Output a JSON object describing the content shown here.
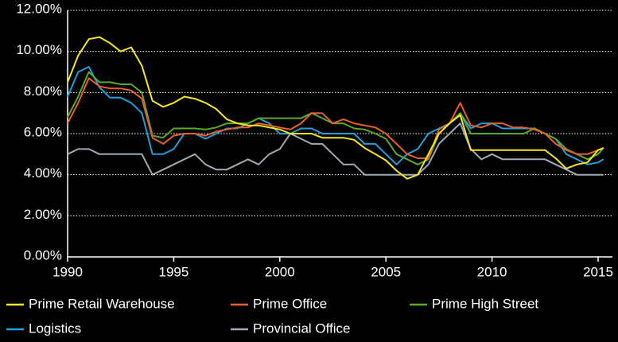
{
  "chart_data": {
    "type": "line",
    "x": [
      1990,
      1990.5,
      1991,
      1991.5,
      1992,
      1992.5,
      1993,
      1993.5,
      1994,
      1994.5,
      1995,
      1995.5,
      1996,
      1996.5,
      1997,
      1997.5,
      1998,
      1998.5,
      1999,
      1999.5,
      2000,
      2000.5,
      2001,
      2001.5,
      2002,
      2002.5,
      2003,
      2003.5,
      2004,
      2004.5,
      2005,
      2005.5,
      2006,
      2006.5,
      2007,
      2007.5,
      2008,
      2008.5,
      2009,
      2009.5,
      2010,
      2010.5,
      2011,
      2011.5,
      2012,
      2012.5,
      2013,
      2013.5,
      2014,
      2014.5,
      2015,
      2015.25
    ],
    "series": [
      {
        "name": "Prime Retail Warehouse",
        "color": "#f5e61e",
        "values": [
          8.5,
          9.8,
          10.6,
          10.7,
          10.4,
          10.0,
          10.2,
          9.3,
          7.6,
          7.3,
          7.5,
          7.8,
          7.7,
          7.5,
          7.2,
          6.7,
          6.5,
          6.4,
          6.4,
          6.3,
          6.2,
          6.0,
          6.0,
          6.0,
          5.8,
          5.8,
          5.8,
          5.7,
          5.3,
          5.0,
          4.7,
          4.2,
          3.8,
          4.0,
          5.0,
          6.0,
          6.5,
          6.9,
          5.2,
          5.2,
          5.2,
          5.2,
          5.2,
          5.2,
          5.2,
          5.2,
          4.8,
          4.3,
          4.5,
          4.6,
          5.2,
          5.3
        ]
      },
      {
        "name": "Prime Office",
        "color": "#e8602c",
        "values": [
          6.5,
          7.5,
          8.7,
          8.3,
          8.2,
          8.2,
          8.1,
          7.7,
          5.8,
          5.5,
          5.9,
          6.0,
          6.0,
          5.9,
          6.1,
          6.2,
          6.3,
          6.3,
          6.5,
          6.4,
          6.3,
          6.2,
          6.5,
          7.0,
          7.0,
          6.5,
          6.7,
          6.5,
          6.4,
          6.3,
          6.0,
          5.5,
          5.0,
          4.8,
          4.8,
          6.2,
          6.5,
          7.5,
          6.4,
          6.3,
          6.5,
          6.5,
          6.3,
          6.3,
          6.2,
          6.0,
          5.5,
          5.2,
          5.0,
          5.0,
          5.2,
          5.3
        ]
      },
      {
        "name": "Prime High Street",
        "color": "#5aaa2a",
        "values": [
          6.8,
          7.8,
          9.0,
          8.5,
          8.5,
          8.4,
          8.4,
          8.0,
          5.9,
          5.8,
          6.25,
          6.25,
          6.25,
          6.2,
          6.3,
          6.5,
          6.5,
          6.5,
          6.75,
          6.75,
          6.75,
          6.75,
          6.75,
          7.0,
          6.75,
          6.5,
          6.5,
          6.25,
          6.2,
          6.0,
          5.75,
          5.0,
          4.75,
          4.5,
          4.75,
          6.0,
          6.5,
          7.0,
          6.0,
          6.0,
          6.0,
          6.0,
          6.0,
          6.0,
          6.25,
          6.0,
          5.75,
          5.25,
          5.0,
          4.75,
          5.0,
          5.3
        ]
      },
      {
        "name": "Logistics",
        "color": "#1ea0dc",
        "values": [
          7.8,
          9.0,
          9.25,
          8.25,
          7.75,
          7.75,
          7.5,
          7.0,
          5.0,
          5.0,
          5.25,
          6.0,
          6.0,
          5.75,
          6.0,
          6.25,
          6.25,
          6.5,
          6.75,
          6.5,
          6.0,
          6.0,
          6.25,
          6.25,
          6.0,
          6.0,
          6.0,
          6.0,
          5.5,
          5.5,
          5.0,
          4.5,
          5.0,
          5.25,
          6.0,
          6.25,
          6.5,
          7.0,
          6.25,
          6.5,
          6.5,
          6.25,
          6.25,
          6.25,
          6.25,
          6.0,
          5.75,
          5.0,
          4.75,
          4.5,
          4.6,
          4.75
        ]
      },
      {
        "name": "Provincial Office",
        "color": "#a0aab4",
        "values": [
          5.0,
          5.25,
          5.25,
          5.0,
          5.0,
          5.0,
          5.0,
          5.0,
          4.0,
          4.25,
          4.5,
          4.75,
          5.0,
          4.5,
          4.25,
          4.25,
          4.5,
          4.75,
          4.5,
          5.0,
          5.25,
          6.0,
          5.75,
          5.5,
          5.5,
          5.0,
          4.5,
          4.5,
          4.0,
          4.0,
          4.0,
          4.0,
          4.0,
          4.0,
          4.5,
          5.5,
          6.0,
          6.5,
          5.25,
          4.75,
          5.0,
          4.75,
          4.75,
          4.75,
          4.75,
          4.75,
          4.5,
          4.25,
          4.0,
          4.0,
          4.0,
          4.0
        ]
      }
    ],
    "xlim": [
      1990,
      2015
    ],
    "xticks": [
      1990,
      1995,
      2000,
      2005,
      2010,
      2015
    ],
    "ylim": [
      0,
      12
    ],
    "yticks": [
      {
        "value": 0,
        "label": "0.00%"
      },
      {
        "value": 2,
        "label": "2.00%"
      },
      {
        "value": 4,
        "label": "4.00%"
      },
      {
        "value": 6,
        "label": "6.00%"
      },
      {
        "value": 8,
        "label": "8.00%"
      },
      {
        "value": 10,
        "label": "10.00%"
      },
      {
        "value": 12,
        "label": "12.00%"
      }
    ],
    "grid": true
  }
}
